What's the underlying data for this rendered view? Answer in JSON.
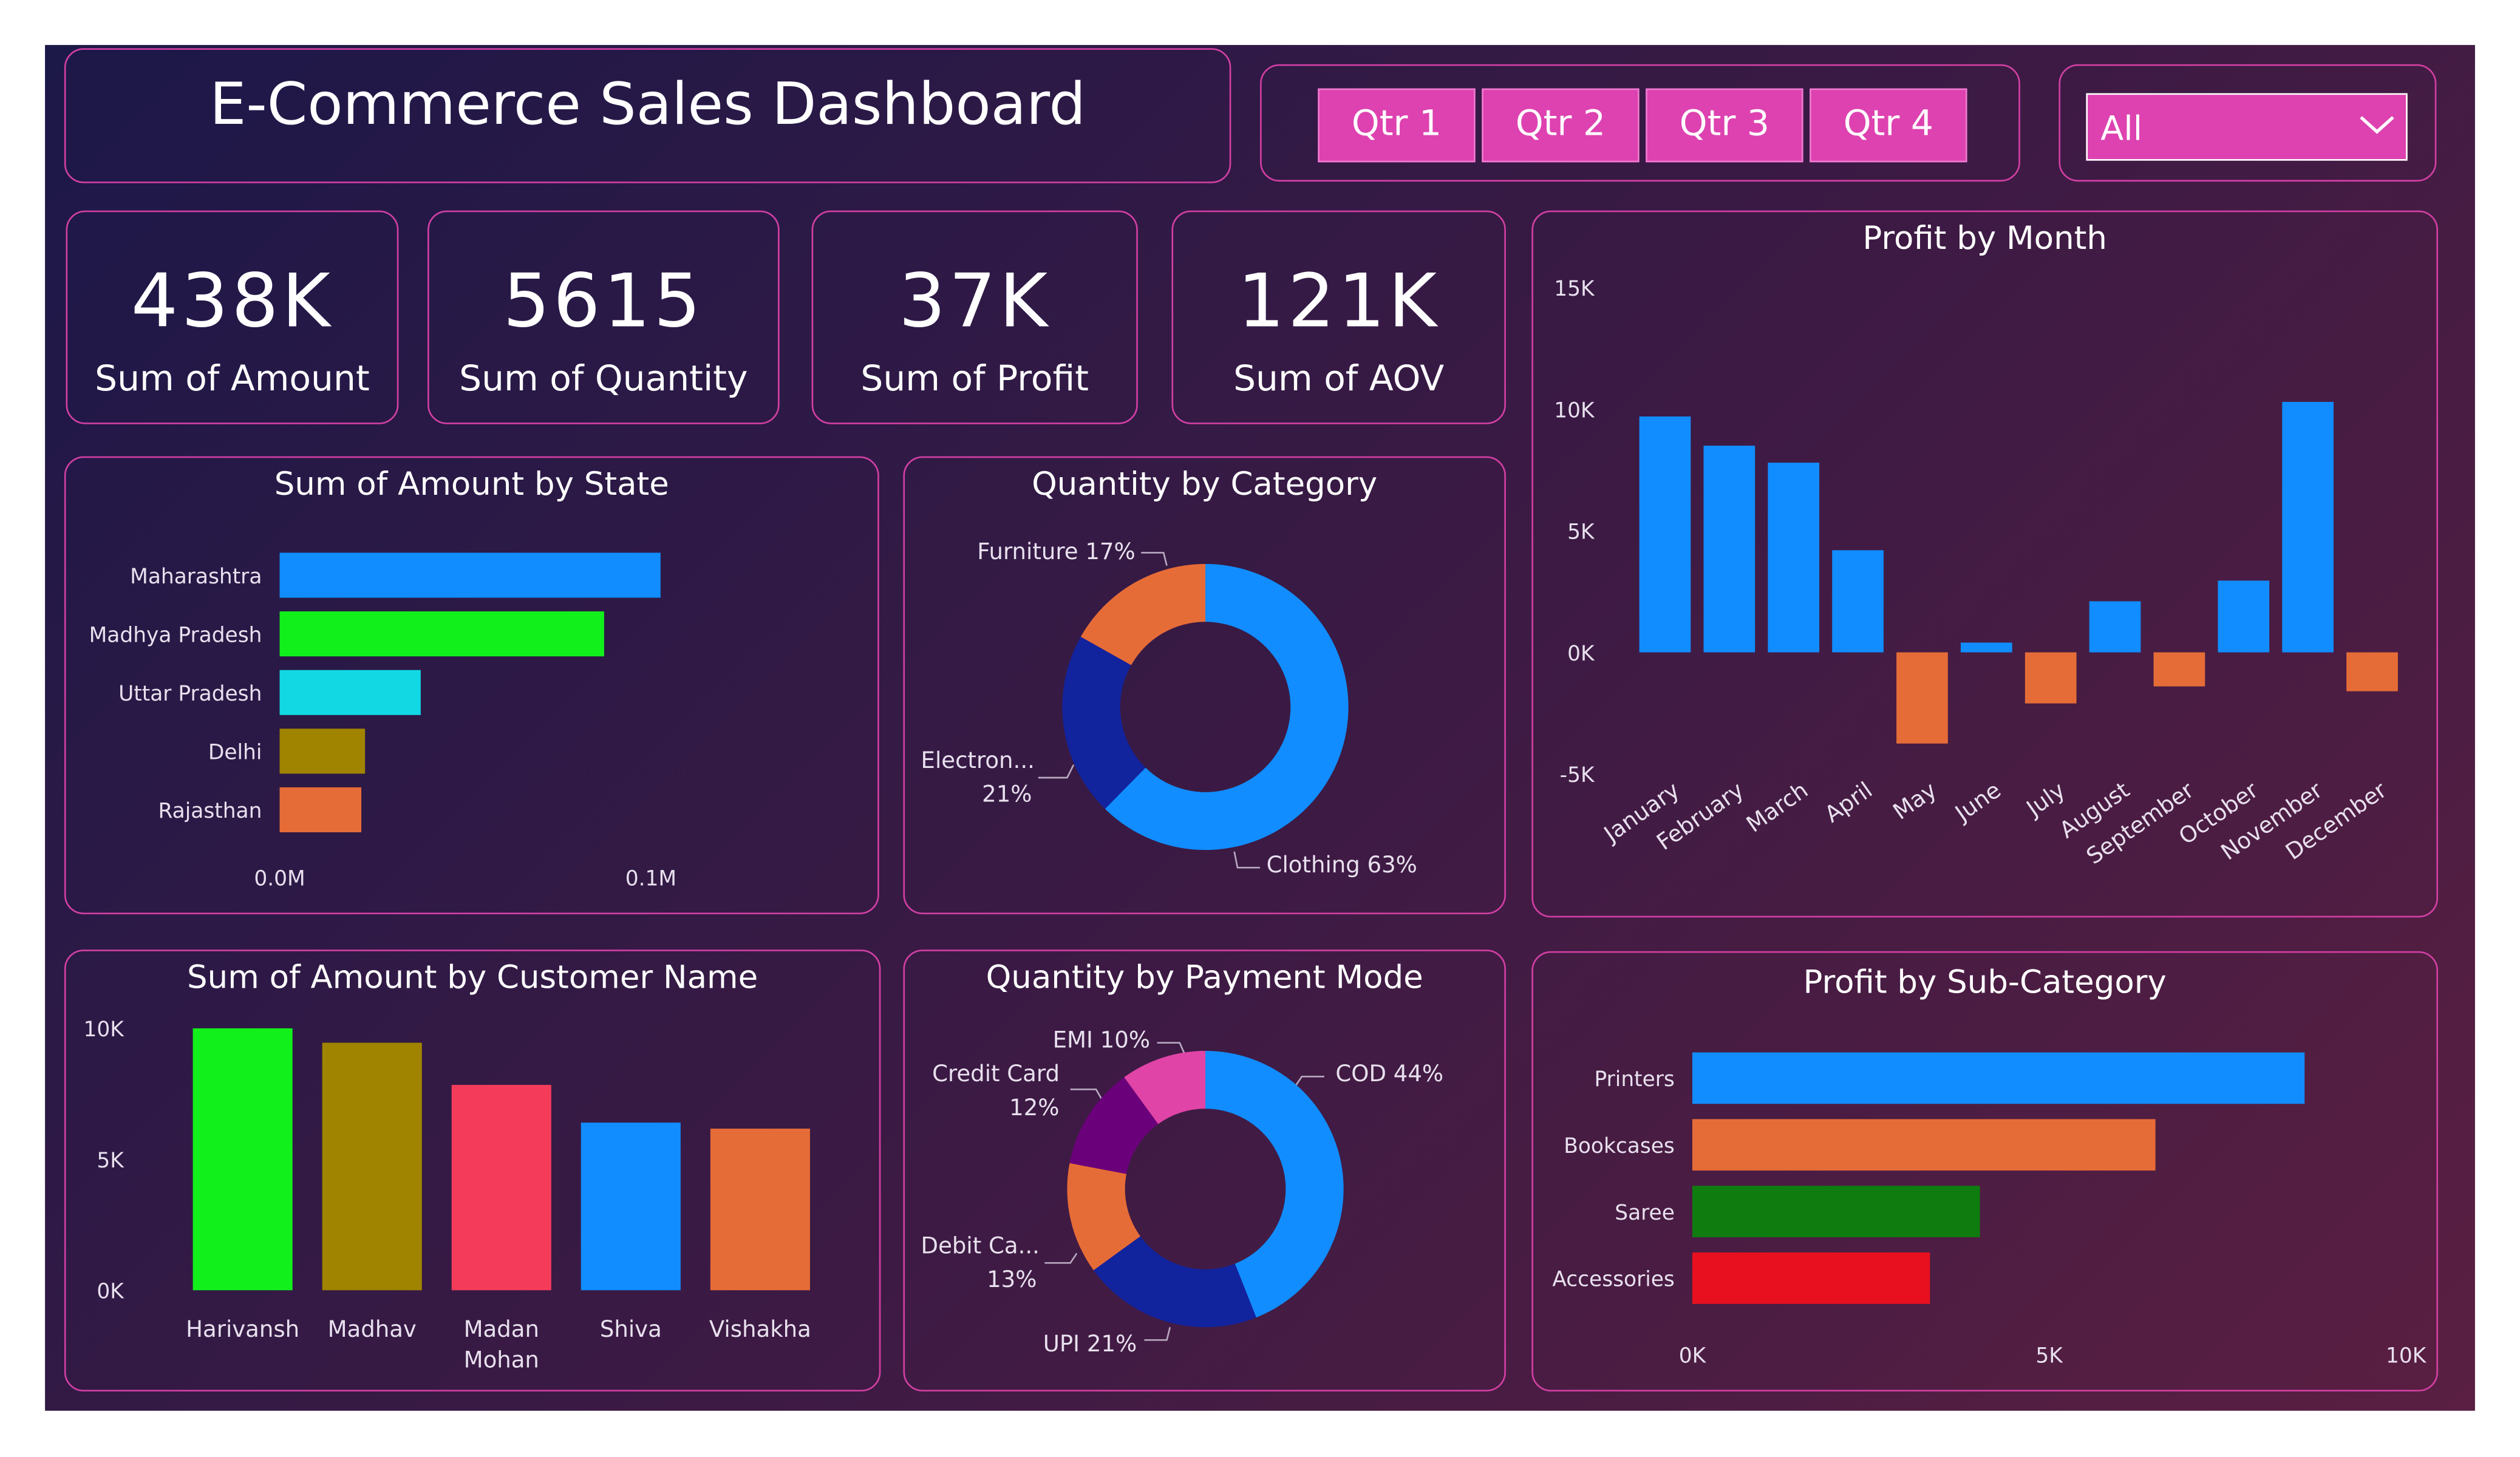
{
  "header": {
    "title": "E-Commerce Sales Dashboard"
  },
  "filters": {
    "quarters": [
      "Qtr 1",
      "Qtr 2",
      "Qtr 3",
      "Qtr 4"
    ],
    "dropdown_value": "All",
    "button_color": "#dd42b0"
  },
  "kpis": [
    {
      "value": "438K",
      "label": "Sum of Amount"
    },
    {
      "value": "5615",
      "label": "Sum of Quantity"
    },
    {
      "value": "37K",
      "label": "Sum of Profit"
    },
    {
      "value": "121K",
      "label": "Sum of AOV"
    }
  ],
  "chart_data": [
    {
      "id": "state",
      "type": "bar",
      "orientation": "horizontal",
      "title": "Sum of Amount by State",
      "categories": [
        "Maharashtra",
        "Madhya Pradesh",
        "Uttar Pradesh",
        "Delhi",
        "Rajasthan"
      ],
      "values": [
        0.1026,
        0.0874,
        0.038,
        0.023,
        0.022
      ],
      "colors": [
        "#118dff",
        "#12f01c",
        "#12d8e4",
        "#a08400",
        "#e66c37"
      ],
      "xticks": [
        "0.0M",
        "0.1M"
      ],
      "xlim": [
        0,
        0.1
      ]
    },
    {
      "id": "category",
      "type": "pie",
      "donut": true,
      "title": "Quantity by Category",
      "slices": [
        {
          "label": "Clothing",
          "value": 63,
          "text": "Clothing 63%",
          "color": "#118dff"
        },
        {
          "label": "Electronics",
          "value": 21,
          "text": "Electron...",
          "pct": "21%",
          "color": "#12239e"
        },
        {
          "label": "Furniture",
          "value": 17,
          "text": "Furniture 17%",
          "color": "#e66c37"
        }
      ]
    },
    {
      "id": "month",
      "type": "bar",
      "title": "Profit by Month",
      "categories": [
        "January",
        "February",
        "March",
        "April",
        "May",
        "June",
        "July",
        "August",
        "September",
        "October",
        "November",
        "December"
      ],
      "values": [
        9700,
        8500,
        7800,
        4200,
        -3750,
        400,
        -2100,
        2100,
        -1400,
        2950,
        10300,
        -1600
      ],
      "positive_color": "#118dff",
      "negative_color": "#e66c37",
      "yticks": [
        "15K",
        "10K",
        "5K",
        "0K",
        "-5K"
      ],
      "ylim": [
        -5000,
        15000
      ]
    },
    {
      "id": "customer",
      "type": "bar",
      "title": "Sum of Amount by Customer Name",
      "categories": [
        "Harivansh",
        "Madhav",
        "Madan Mohan",
        "Shiva",
        "Vishakha"
      ],
      "values": [
        10000,
        9450,
        7840,
        6400,
        6170
      ],
      "colors": [
        "#12f01c",
        "#a08400",
        "#f43c5a",
        "#118dff",
        "#e66c37"
      ],
      "yticks": [
        "10K",
        "5K",
        "0K"
      ],
      "ylim": [
        0,
        10000
      ]
    },
    {
      "id": "payment",
      "type": "pie",
      "donut": true,
      "title": "Quantity by Payment Mode",
      "slices": [
        {
          "label": "COD",
          "value": 44,
          "text": "COD 44%",
          "color": "#118dff"
        },
        {
          "label": "UPI",
          "value": 21,
          "text": "UPI 21%",
          "color": "#12239e"
        },
        {
          "label": "Debit Card",
          "value": 13,
          "text": "Debit Ca...",
          "pct": "13%",
          "color": "#e66c37"
        },
        {
          "label": "Credit Card",
          "value": 12,
          "text": "Credit Card",
          "pct": "12%",
          "color": "#6b007b"
        },
        {
          "label": "EMI",
          "value": 10,
          "text": "EMI 10%",
          "color": "#e044a7"
        }
      ]
    },
    {
      "id": "subcat",
      "type": "bar",
      "orientation": "horizontal",
      "title": "Profit by Sub-Category",
      "categories": [
        "Printers",
        "Bookcases",
        "Saree",
        "Accessories"
      ],
      "values": [
        8580,
        6490,
        4030,
        3330
      ],
      "colors": [
        "#118dff",
        "#e66c37",
        "#0f7c10",
        "#e8101e"
      ],
      "xticks": [
        "0K",
        "5K",
        "10K"
      ],
      "xlim": [
        0,
        10000
      ]
    }
  ]
}
